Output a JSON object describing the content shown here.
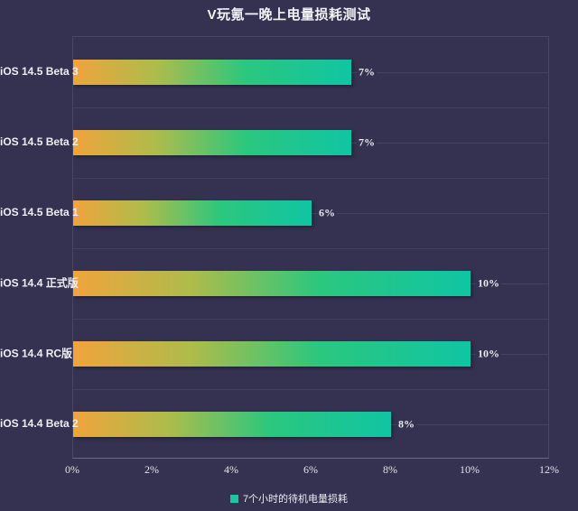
{
  "title": "V玩氪一晚上电量损耗测试",
  "colors": {
    "background": "#343151",
    "bar_gradient_start": "#F0A43C",
    "bar_gradient_mid": "#ADBC4B",
    "bar_gradient_end": "#10C5A3",
    "legend_swatch": "#1EC5A2",
    "text": "#EEEEF4"
  },
  "chart_data": {
    "type": "bar",
    "orientation": "horizontal",
    "title": "V玩氪一晚上电量损耗测试",
    "categories": [
      "iOS 14.5 Beta 3",
      "iOS 14.5 Beta 2",
      "iOS 14.5 Beta 1",
      "iOS 14.4 正式版",
      "iOS 14.4 RC版",
      "iOS 14.4 Beta 2"
    ],
    "values": [
      7,
      7,
      6,
      10,
      10,
      8
    ],
    "value_labels": [
      "7%",
      "7%",
      "6%",
      "10%",
      "10%",
      "8%"
    ],
    "series_name": "7个小时的待机电量损耗",
    "x_ticks": [
      "0%",
      "2%",
      "4%",
      "6%",
      "8%",
      "10%",
      "12%"
    ],
    "xlim": [
      0,
      12
    ],
    "xlabel": "",
    "ylabel": "",
    "grid": true,
    "legend_position": "bottom"
  },
  "legend": {
    "label": "7个小时的待机电量损耗"
  }
}
